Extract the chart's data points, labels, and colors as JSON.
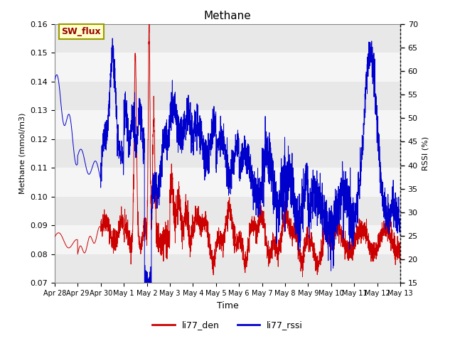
{
  "title": "Methane",
  "ylabel_left": "Methane (mmol/m3)",
  "ylabel_right": "RSSI (%)",
  "xlabel": "Time",
  "ylim_left": [
    0.07,
    0.16
  ],
  "ylim_right": [
    15,
    70
  ],
  "legend_label": "SW_flux",
  "legend_facecolor": "#ffffcc",
  "legend_edgecolor": "#aaaaaa",
  "series_labels": [
    "li77_den",
    "li77_rssi"
  ],
  "series_colors": [
    "#cc0000",
    "#0000cc"
  ],
  "band_colors": [
    "#e8e8e8",
    "#f5f5f5"
  ],
  "band_left_values": [
    0.07,
    0.08,
    0.09,
    0.1,
    0.11,
    0.12,
    0.13,
    0.14,
    0.15,
    0.16
  ],
  "tick_labels": [
    "Apr 28",
    "Apr 29",
    "Apr 30",
    "May 1",
    "May 2",
    "May 3",
    "May 4",
    "May 5",
    "May 6",
    "May 7",
    "May 8",
    "May 9",
    "May 10",
    "May 11",
    "May 12",
    "May 13"
  ]
}
